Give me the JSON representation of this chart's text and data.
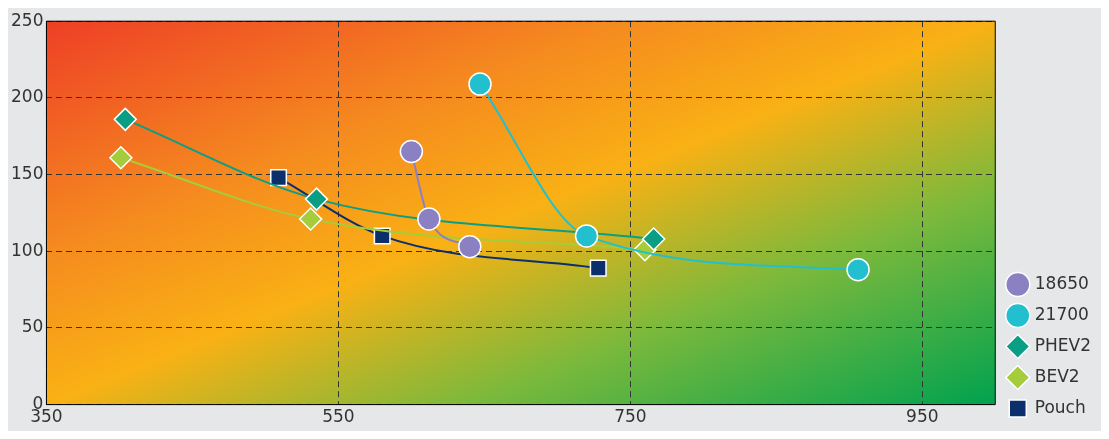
{
  "chart_data": {
    "type": "line",
    "xlim": [
      350,
      1000
    ],
    "xticks": [
      350,
      550,
      750,
      950
    ],
    "ylim": [
      0,
      250
    ],
    "yticks": [
      0,
      50,
      100,
      150,
      200,
      250
    ],
    "grid": true,
    "legend": "right",
    "line_style": "solid",
    "series": [
      {
        "name": "18650",
        "color": "#8b80c2",
        "marker": "circle",
        "x": [
          600,
          612,
          640
        ],
        "values": [
          165,
          121,
          103
        ]
      },
      {
        "name": "21700",
        "color": "#22bfcf",
        "marker": "circle",
        "x": [
          647,
          720,
          906
        ],
        "values": [
          209,
          110,
          88
        ]
      },
      {
        "name": "PHEV2",
        "color": "#0a9e84",
        "marker": "diamond",
        "x": [
          404,
          535,
          766
        ],
        "values": [
          186,
          134,
          108
        ]
      },
      {
        "name": "BEV2",
        "color": "#a5cc3a",
        "marker": "diamond",
        "x": [
          401,
          531,
          760
        ],
        "values": [
          161,
          121,
          101
        ]
      },
      {
        "name": "Pouch",
        "color": "#0b2f6b",
        "marker": "square",
        "x": [
          509,
          580,
          728
        ],
        "values": [
          148,
          110,
          89
        ]
      }
    ]
  }
}
